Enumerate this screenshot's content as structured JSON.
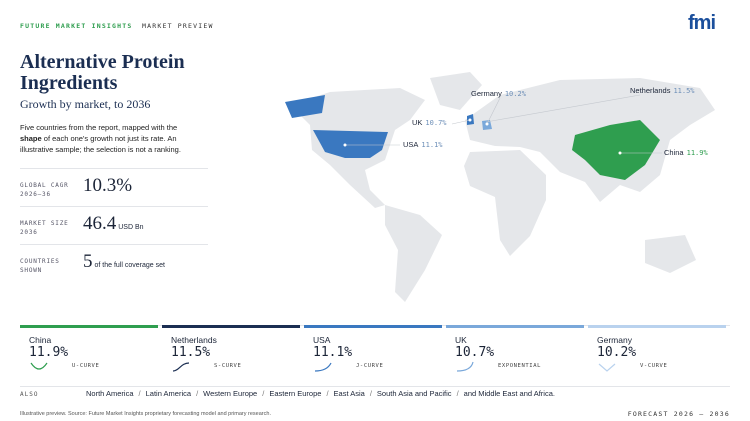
{
  "header": {
    "brand": "FUTURE MARKET INSIGHTS",
    "separator": "·",
    "section": "MARKET PREVIEW",
    "logo": "fmi"
  },
  "title": "Alternative Protein Ingredients",
  "subtitle": "Growth by market, to 2036",
  "description": [
    "Five countries from the report, mapped with the ",
    "shape",
    " of each one's growth not just its rate. An illustrative sample; the selection is not a ranking."
  ],
  "stats": [
    {
      "label": "GLOBAL CAGR 2026–36",
      "value": "10.3%"
    },
    {
      "label": "MARKET SIZE 2036",
      "value": "46.4",
      "unit": "USD Bn"
    },
    {
      "label": "COUNTRIES SHOWN",
      "value": "5",
      "unit": "of the full coverage set"
    }
  ],
  "map_labels": [
    {
      "country": "Germany",
      "value": "10.2%"
    },
    {
      "country": "Netherlands",
      "value": "11.5%"
    },
    {
      "country": "UK",
      "value": "10.7%"
    },
    {
      "country": "USA",
      "value": "11.1%"
    },
    {
      "country": "China",
      "value": "11.9%"
    }
  ],
  "cards": [
    {
      "country": "China",
      "value": "11.9%",
      "curve": "U-CURVE",
      "color": "#2f9e4f"
    },
    {
      "country": "Netherlands",
      "value": "11.5%",
      "curve": "S-CURVE",
      "color": "#1b2e52"
    },
    {
      "country": "USA",
      "value": "11.1%",
      "curve": "J-CURVE",
      "color": "#3a78c0"
    },
    {
      "country": "UK",
      "value": "10.7%",
      "curve": "EXPONENTIAL",
      "color": "#7aa8da"
    },
    {
      "country": "Germany",
      "value": "10.2%",
      "curve": "V-CURVE",
      "color": "#b9d2ee"
    }
  ],
  "also": {
    "label": "ALSO",
    "regions": [
      "North America",
      "Latin America",
      "Western Europe",
      "Eastern Europe",
      "East Asia",
      "South Asia and Pacific",
      "and Middle East and Africa."
    ],
    "separator": "/"
  },
  "footer": {
    "note": "Illustrative preview. Source: Future Market Insights proprietary forecasting model and primary research.",
    "forecast": "FORECAST 2026 – 2036"
  }
}
